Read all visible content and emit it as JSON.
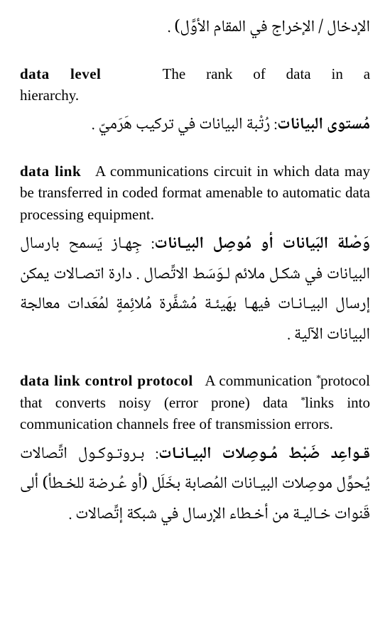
{
  "entries": [
    {
      "en_term": "",
      "en_def": "",
      "ar_term": "",
      "ar_body": "الإدخال / الإخراج في المقام الأوَّل) ."
    },
    {
      "en_term": "data level",
      "en_def": "The rank of data in a hierarchy.",
      "ar_term": "مُستوى البيانات",
      "ar_body": ": رُتْبة البيانات في تركيب هَرَميّ ."
    },
    {
      "en_term": "data link",
      "en_def": "A communications circuit in which data may be transferred in coded format amenable to automatic data processing equipment.",
      "ar_term": "وَصْلة البَيانات أو مُوصِل البيـانات",
      "ar_body": ": جِهـاز يَسمح بارسال البيانات في شكـل ملائم لـوَسَط الاتِّصال . دارة اتصـالات يمكن إرسال البيـانـات فيهـا بهَيئـة مُشفَّرة مُلائِمةٍ لمُعَدات معالجة البيانات الآلية ."
    },
    {
      "en_term": "data link control protocol",
      "en_def": "A communication *protocol that converts noisy (error prone) data *links into communication channels free of transmission errors.",
      "ar_term": "قـواعِد ضَبْط مُـوصِلات البيـانـات",
      "ar_body": ": بـروتـوكـول اتِّصالات يُحوِّل موصِلات البيـانات المُصابة بخَلَل (أو عُـرضة للخـطأ) ألى قَنوات خـاليـة من أخـطاء الإرسال في شبكة إتِّصالات ."
    }
  ]
}
